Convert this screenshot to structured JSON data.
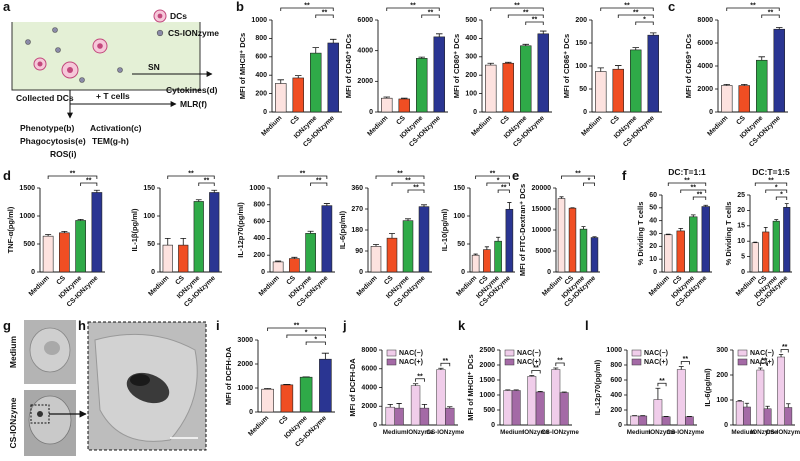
{
  "panel_labels": [
    "a",
    "b",
    "c",
    "d",
    "e",
    "f",
    "g",
    "h",
    "i",
    "j",
    "k",
    "l"
  ],
  "schematic": {
    "legend_dcs": "DCs",
    "legend_ionzyme": "CS-IONzyme",
    "sn": "SN",
    "cytokines": "Cytokines(d)",
    "collected": "Collected DCs",
    "t_cells": "+ T cells",
    "mlr": "MLR(f)",
    "phenotype": "Phenotype(b)",
    "activation": "Activation(c)",
    "phagocytosis": "Phagocytosis(e)",
    "tem": "TEM(g-h)",
    "ros": "ROS(i)"
  },
  "tem": {
    "labels": [
      "Medium",
      "CS-IONzyme"
    ]
  },
  "chart_data": [
    {
      "type": "bar",
      "y_label": "MFI of MHCII⁺ DCs",
      "categories": [
        "Medium",
        "CS",
        "IONzyme",
        "CS-IONzyme"
      ],
      "colors": [
        "#fde2df",
        "#f04e23",
        "#2faa48",
        "#2a3592"
      ],
      "values": [
        310,
        370,
        640,
        750
      ],
      "errors": [
        40,
        25,
        60,
        40
      ],
      "ylim": [
        0,
        1000
      ],
      "yticks": [
        0,
        200,
        400,
        600,
        800,
        1000
      ],
      "significance": [
        {
          "label": "**",
          "pair": [
            0,
            3
          ]
        },
        {
          "label": "**",
          "pair": [
            2,
            3
          ]
        }
      ]
    },
    {
      "type": "bar",
      "y_label": "MFI of CD40⁺ DCs",
      "categories": [
        "Medium",
        "CS",
        "IONzyme",
        "CS-IONzyme"
      ],
      "colors": [
        "#fde2df",
        "#f04e23",
        "#2faa48",
        "#2a3592"
      ],
      "values": [
        900,
        850,
        3500,
        4900
      ],
      "errors": [
        80,
        50,
        80,
        200
      ],
      "ylim": [
        0,
        6000
      ],
      "yticks": [
        0,
        2000,
        4000,
        6000
      ],
      "significance": [
        {
          "label": "**",
          "pair": [
            0,
            3
          ]
        },
        {
          "label": "**",
          "pair": [
            2,
            3
          ]
        }
      ]
    },
    {
      "type": "bar",
      "y_label": "MFI of CD80⁺ DCs",
      "categories": [
        "Medium",
        "CS",
        "IONzyme",
        "CS-IONzyme"
      ],
      "colors": [
        "#fde2df",
        "#f04e23",
        "#2faa48",
        "#2a3592"
      ],
      "values": [
        255,
        265,
        360,
        425
      ],
      "errors": [
        10,
        5,
        8,
        15
      ],
      "ylim": [
        0,
        500
      ],
      "yticks": [
        0,
        100,
        200,
        300,
        400,
        500
      ],
      "significance": [
        {
          "label": "**",
          "pair": [
            0,
            3
          ]
        },
        {
          "label": "**",
          "pair": [
            1,
            3
          ]
        },
        {
          "label": "**",
          "pair": [
            2,
            3
          ]
        }
      ]
    },
    {
      "type": "bar",
      "y_label": "MFI of CD86⁺ DCs",
      "categories": [
        "Medium",
        "CS",
        "IONzyme",
        "CS-IONzyme"
      ],
      "colors": [
        "#fde2df",
        "#f04e23",
        "#2faa48",
        "#2a3592"
      ],
      "values": [
        88,
        93,
        135,
        167
      ],
      "errors": [
        8,
        8,
        5,
        5
      ],
      "ylim": [
        0,
        200
      ],
      "yticks": [
        0,
        50,
        100,
        150,
        200
      ],
      "significance": [
        {
          "label": "**",
          "pair": [
            0,
            3
          ]
        },
        {
          "label": "**",
          "pair": [
            1,
            3
          ]
        },
        {
          "label": "*",
          "pair": [
            2,
            3
          ]
        }
      ]
    },
    {
      "type": "bar",
      "y_label": "MFI of CD69⁺ DCs",
      "categories": [
        "Medium",
        "CS",
        "IONzyme",
        "CS-IONzyme"
      ],
      "colors": [
        "#fde2df",
        "#f04e23",
        "#2faa48",
        "#2a3592"
      ],
      "values": [
        2300,
        2300,
        4500,
        7200
      ],
      "errors": [
        100,
        100,
        300,
        150
      ],
      "ylim": [
        0,
        8000
      ],
      "yticks": [
        0,
        2000,
        4000,
        6000,
        8000
      ],
      "significance": [
        {
          "label": "**",
          "pair": [
            0,
            3
          ]
        },
        {
          "label": "**",
          "pair": [
            2,
            3
          ]
        }
      ]
    },
    {
      "type": "bar",
      "y_label": "TNF-α(pg/ml)",
      "categories": [
        "Medium",
        "CS",
        "IONzyme",
        "CS-IONzyme"
      ],
      "colors": [
        "#fde2df",
        "#f04e23",
        "#2faa48",
        "#2a3592"
      ],
      "values": [
        640,
        700,
        920,
        1420
      ],
      "errors": [
        30,
        25,
        20,
        40
      ],
      "ylim": [
        0,
        1500
      ],
      "yticks": [
        0,
        500,
        1000,
        1500
      ],
      "significance": [
        {
          "label": "**",
          "pair": [
            0,
            3
          ]
        },
        {
          "label": "**",
          "pair": [
            2,
            3
          ]
        }
      ]
    },
    {
      "type": "bar",
      "y_label": "IL-1β(pg/ml)",
      "categories": [
        "Medium",
        "CS",
        "IONzyme",
        "CS-IONzyme"
      ],
      "colors": [
        "#fde2df",
        "#f04e23",
        "#2faa48",
        "#2a3592"
      ],
      "values": [
        48,
        48,
        126,
        142
      ],
      "errors": [
        12,
        12,
        3,
        4
      ],
      "ylim": [
        0,
        150
      ],
      "yticks": [
        0,
        50,
        100,
        150
      ],
      "significance": [
        {
          "label": "**",
          "pair": [
            0,
            3
          ]
        },
        {
          "label": "**",
          "pair": [
            2,
            3
          ]
        }
      ]
    },
    {
      "type": "bar",
      "y_label": "IL-12p70(pg/ml)",
      "categories": [
        "Medium",
        "CS",
        "IONzyme",
        "CS-IONzyme"
      ],
      "colors": [
        "#fde2df",
        "#f04e23",
        "#2faa48",
        "#2a3592"
      ],
      "values": [
        120,
        160,
        460,
        790
      ],
      "errors": [
        10,
        15,
        25,
        25
      ],
      "ylim": [
        0,
        1000
      ],
      "yticks": [
        0,
        200,
        400,
        600,
        800,
        1000
      ],
      "significance": [
        {
          "label": "**",
          "pair": [
            0,
            3
          ]
        },
        {
          "label": "**",
          "pair": [
            2,
            3
          ]
        }
      ]
    },
    {
      "type": "bar",
      "y_label": "IL-6(pg/ml)",
      "categories": [
        "Medium",
        "CS",
        "IONzyme",
        "CS-IONzyme"
      ],
      "colors": [
        "#fde2df",
        "#f04e23",
        "#2faa48",
        "#2a3592"
      ],
      "values": [
        110,
        145,
        220,
        280
      ],
      "errors": [
        8,
        20,
        8,
        8
      ],
      "ylim": [
        0,
        360
      ],
      "yticks": [
        0,
        90,
        180,
        270,
        360
      ],
      "significance": [
        {
          "label": "**",
          "pair": [
            0,
            3
          ]
        },
        {
          "label": "**",
          "pair": [
            1,
            3
          ]
        },
        {
          "label": "**",
          "pair": [
            2,
            3
          ]
        }
      ]
    },
    {
      "type": "bar",
      "y_label": "IL-10(pg/ml)",
      "categories": [
        "Medium",
        "CS",
        "IONzyme",
        "CS-IONzyme"
      ],
      "colors": [
        "#fde2df",
        "#f04e23",
        "#2faa48",
        "#2a3592"
      ],
      "values": [
        30,
        40,
        55,
        112
      ],
      "errors": [
        2,
        5,
        7,
        12
      ],
      "ylim": [
        0,
        150
      ],
      "yticks": [
        0,
        50,
        100,
        150
      ],
      "significance": [
        {
          "label": "**",
          "pair": [
            0,
            3
          ]
        },
        {
          "label": "*",
          "pair": [
            1,
            3
          ]
        },
        {
          "label": "**",
          "pair": [
            2,
            3
          ]
        }
      ]
    },
    {
      "type": "bar",
      "y_label": "MFI of FITC-Dextran⁺ DCs",
      "categories": [
        "Medium",
        "CS",
        "IONzyme",
        "CS-IONzyme"
      ],
      "colors": [
        "#fde2df",
        "#f04e23",
        "#2faa48",
        "#2a3592"
      ],
      "values": [
        17500,
        15200,
        10200,
        8200
      ],
      "errors": [
        400,
        100,
        600,
        200
      ],
      "ylim": [
        0,
        20000
      ],
      "yticks": [
        0,
        5000,
        10000,
        15000,
        20000
      ],
      "significance": [
        {
          "label": "**",
          "pair": [
            0,
            3
          ]
        },
        {
          "label": "*",
          "pair": [
            2,
            3
          ]
        }
      ]
    },
    {
      "type": "bar",
      "title": "DC:T=1:1",
      "y_label": "% Dividing T cells",
      "categories": [
        "Medium",
        "CS",
        "IONzyme",
        "CS-IONzyme"
      ],
      "colors": [
        "#fde2df",
        "#f04e23",
        "#2faa48",
        "#2a3592"
      ],
      "values": [
        29,
        32,
        43,
        51
      ],
      "errors": [
        0.5,
        2,
        1.5,
        1
      ],
      "ylim": [
        0,
        60
      ],
      "yticks": [
        0,
        10,
        20,
        30,
        40,
        50,
        60
      ],
      "significance": [
        {
          "label": "**",
          "pair": [
            0,
            3
          ]
        },
        {
          "label": "**",
          "pair": [
            1,
            3
          ]
        },
        {
          "label": "**",
          "pair": [
            2,
            3
          ]
        }
      ]
    },
    {
      "type": "bar",
      "title": "DC:T=1:5",
      "y_label": "% Dividing T cells",
      "categories": [
        "Medium",
        "CS",
        "IONzyme",
        "CS-IONzyme"
      ],
      "colors": [
        "#fde2df",
        "#f04e23",
        "#2faa48",
        "#2a3592"
      ],
      "values": [
        9.5,
        13,
        16.5,
        21
      ],
      "errors": [
        0.2,
        1.5,
        0.5,
        1.2
      ],
      "ylim": [
        0,
        25
      ],
      "yticks": [
        0,
        5,
        10,
        15,
        20,
        25
      ],
      "significance": [
        {
          "label": "**",
          "pair": [
            0,
            3
          ]
        },
        {
          "label": "*",
          "pair": [
            1,
            3
          ]
        },
        {
          "label": "*",
          "pair": [
            2,
            3
          ]
        }
      ]
    },
    {
      "type": "bar",
      "y_label": "MFI of DCFH-DA",
      "categories": [
        "Medium",
        "CS",
        "IONzyme",
        "CS-IONzyme"
      ],
      "colors": [
        "#fde2df",
        "#f04e23",
        "#2faa48",
        "#2a3592"
      ],
      "values": [
        950,
        1130,
        1450,
        2200
      ],
      "errors": [
        30,
        20,
        15,
        250
      ],
      "ylim": [
        0,
        3000
      ],
      "yticks": [
        0,
        1000,
        2000,
        3000
      ],
      "significance": [
        {
          "label": "**",
          "pair": [
            0,
            3
          ]
        },
        {
          "label": "*",
          "pair": [
            1,
            3
          ]
        },
        {
          "label": "*",
          "pair": [
            2,
            3
          ]
        }
      ]
    },
    {
      "type": "grouped_bar",
      "y_label": "MFI of DCFH-DA",
      "categories": [
        "Medium",
        "IONzyme",
        "CS-IONzyme"
      ],
      "series": [
        {
          "name": "NAC(−)",
          "color": "#f0cdea",
          "values": [
            1900,
            4200,
            5900
          ],
          "errors": [
            300,
            200,
            150
          ]
        },
        {
          "name": "NAC(+)",
          "color": "#a46aa6",
          "values": [
            1800,
            1800,
            1800
          ],
          "errors": [
            500,
            400,
            150
          ]
        }
      ],
      "ylim": [
        0,
        8000
      ],
      "yticks": [
        0,
        2000,
        4000,
        6000,
        8000
      ],
      "significance": [
        {
          "label": "**",
          "category": 1
        },
        {
          "label": "**",
          "category": 2
        }
      ]
    },
    {
      "type": "grouped_bar",
      "y_label": "MFI of MHCII⁺ DCs",
      "categories": [
        "Medium",
        "IONzyme",
        "CS-IONzyme"
      ],
      "series": [
        {
          "name": "NAC(−)",
          "color": "#f0cdea",
          "values": [
            1150,
            1620,
            1850
          ],
          "errors": [
            20,
            30,
            50
          ]
        },
        {
          "name": "NAC(+)",
          "color": "#a46aa6",
          "values": [
            1150,
            1100,
            1080
          ],
          "errors": [
            20,
            20,
            20
          ]
        }
      ],
      "ylim": [
        0,
        2500
      ],
      "yticks": [
        0,
        500,
        1000,
        1500,
        2000,
        2500
      ],
      "significance": [
        {
          "label": "**",
          "category": 1
        },
        {
          "label": "**",
          "category": 2
        }
      ]
    },
    {
      "type": "grouped_bar",
      "y_label": "IL-12p70(pg/ml)",
      "categories": [
        "Medium",
        "IONzyme",
        "CS-IONzyme"
      ],
      "series": [
        {
          "name": "NAC(−)",
          "color": "#f0cdea",
          "values": [
            120,
            340,
            740
          ],
          "errors": [
            5,
            150,
            40
          ]
        },
        {
          "name": "NAC(+)",
          "color": "#a46aa6",
          "values": [
            120,
            110,
            110
          ],
          "errors": [
            5,
            5,
            5
          ]
        }
      ],
      "ylim": [
        0,
        1000
      ],
      "yticks": [
        0,
        200,
        400,
        600,
        800,
        1000
      ],
      "significance": [
        {
          "label": "**",
          "category": 1
        },
        {
          "label": "**",
          "category": 2
        }
      ]
    },
    {
      "type": "grouped_bar",
      "y_label": "IL-6(pg/ml)",
      "categories": [
        "Medium",
        "IONzyme",
        "CS-IONzyme"
      ],
      "series": [
        {
          "name": "NAC(−)",
          "color": "#f0cdea",
          "values": [
            95,
            220,
            272
          ],
          "errors": [
            3,
            8,
            10
          ]
        },
        {
          "name": "NAC(+)",
          "color": "#a46aa6",
          "values": [
            72,
            65,
            70
          ],
          "errors": [
            15,
            10,
            15
          ]
        }
      ],
      "ylim": [
        0,
        300
      ],
      "yticks": [
        0,
        100,
        200,
        300
      ],
      "significance": [
        {
          "label": "**",
          "category": 1
        },
        {
          "label": "**",
          "category": 2
        }
      ]
    }
  ]
}
